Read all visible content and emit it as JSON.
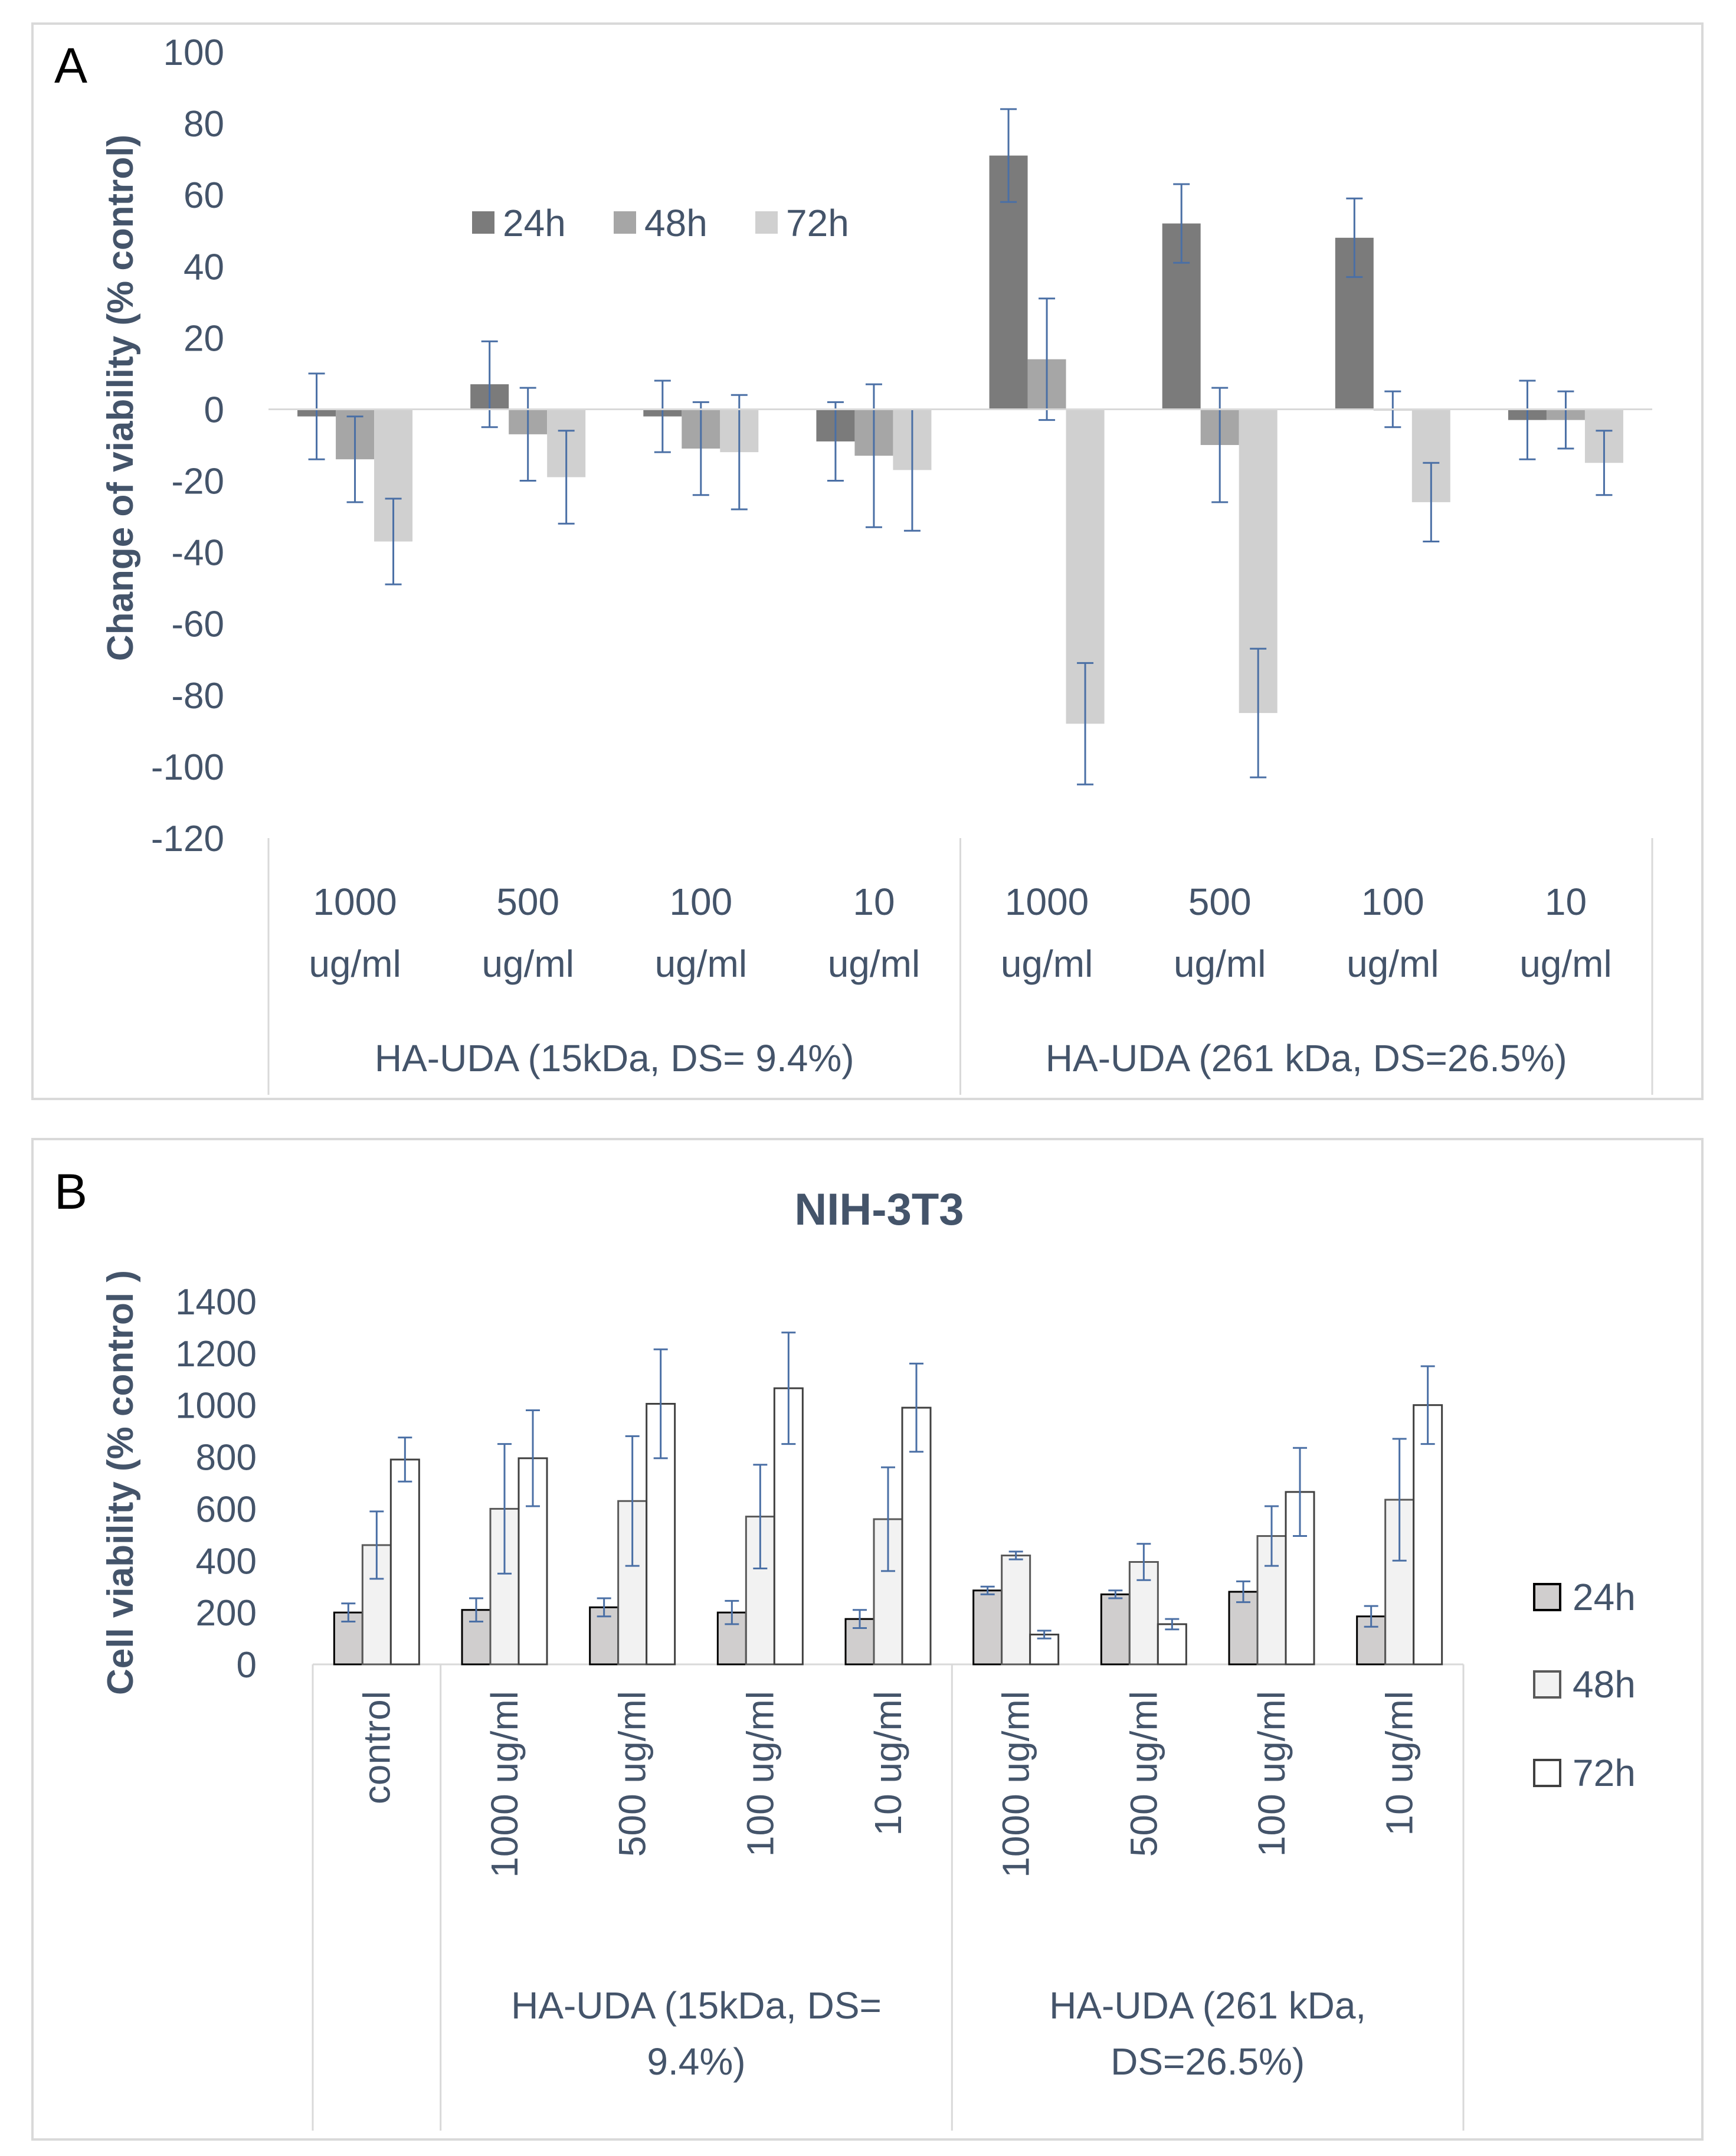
{
  "panels": {
    "a": {
      "label": "A"
    },
    "b": {
      "label": "B"
    }
  },
  "chart_data": [
    {
      "type": "bar",
      "panel": "A",
      "title": "",
      "ylabel": "Change of  viability (% control)",
      "ylim": [
        -120,
        100
      ],
      "yticks": [
        100,
        80,
        60,
        40,
        20,
        0,
        -20,
        -40,
        -60,
        -80,
        -100,
        -120
      ],
      "categories": [
        [
          "1000",
          "ug/ml"
        ],
        [
          "500",
          "ug/ml"
        ],
        [
          "100",
          "ug/ml"
        ],
        [
          "10",
          "ug/ml"
        ],
        [
          "1000",
          "ug/ml"
        ],
        [
          "500",
          "ug/ml"
        ],
        [
          "100",
          "ug/ml"
        ],
        [
          "10",
          "ug/ml"
        ]
      ],
      "groups": [
        {
          "label": "HA-UDA (15kDa, DS= 9.4%)",
          "span": 4
        },
        {
          "label": "HA-UDA (261 kDa, DS=26.5%)",
          "span": 4
        }
      ],
      "legend_position": "top-left",
      "series": [
        {
          "name": "24h",
          "color": "#7b7b7b",
          "values": [
            -2,
            7,
            -2,
            -9,
            71,
            52,
            48,
            -3
          ],
          "errors": [
            12,
            12,
            10,
            11,
            13,
            11,
            11,
            11
          ]
        },
        {
          "name": "48h",
          "color": "#a6a6a6",
          "values": [
            -14,
            -7,
            -11,
            -13,
            14,
            -10,
            0,
            -3
          ],
          "errors": [
            12,
            13,
            13,
            20,
            17,
            16,
            5,
            8
          ]
        },
        {
          "name": "72h",
          "color": "#d0d0d0",
          "values": [
            -37,
            -19,
            -12,
            -17,
            -88,
            -85,
            -26,
            -15
          ],
          "errors": [
            12,
            13,
            16,
            17,
            17,
            18,
            11,
            9
          ]
        }
      ]
    },
    {
      "type": "bar",
      "panel": "B",
      "title": "NIH-3T3",
      "ylabel": "Cell viability (% control )",
      "ylim": [
        0,
        1400
      ],
      "yticks": [
        1400,
        1200,
        1000,
        800,
        600,
        400,
        200,
        0
      ],
      "categories": [
        "control",
        "1000 ug/ml",
        "500 ug/ml",
        "100 ug/ml",
        "10 ug/ml",
        "1000 ug/ml",
        "500 ug/ml",
        "100 ug/ml",
        "10 ug/ml"
      ],
      "groups": [
        {
          "label": "",
          "span": 1
        },
        {
          "label_lines": [
            "HA-UDA (15kDa, DS=",
            "9.4%)"
          ],
          "span": 4
        },
        {
          "label_lines": [
            "HA-UDA (261 kDa,",
            "DS=26.5%)"
          ],
          "span": 4
        }
      ],
      "legend_position": "right",
      "series": [
        {
          "name": "24h",
          "color": "#d0cece",
          "stroke": "#000000",
          "values": [
            200,
            210,
            220,
            200,
            175,
            285,
            270,
            280,
            185
          ],
          "errors": [
            35,
            45,
            35,
            45,
            35,
            15,
            15,
            40,
            40
          ]
        },
        {
          "name": "48h",
          "color": "#f2f2f2",
          "stroke": "#595959",
          "values": [
            460,
            600,
            630,
            570,
            560,
            420,
            395,
            495,
            635
          ],
          "errors": [
            130,
            250,
            250,
            200,
            200,
            15,
            70,
            115,
            235
          ]
        },
        {
          "name": "72h",
          "color": "#ffffff",
          "stroke": "#404040",
          "values": [
            790,
            795,
            1005,
            1065,
            990,
            115,
            155,
            665,
            1000
          ],
          "errors": [
            85,
            185,
            210,
            215,
            170,
            15,
            20,
            170,
            150
          ]
        }
      ]
    }
  ]
}
